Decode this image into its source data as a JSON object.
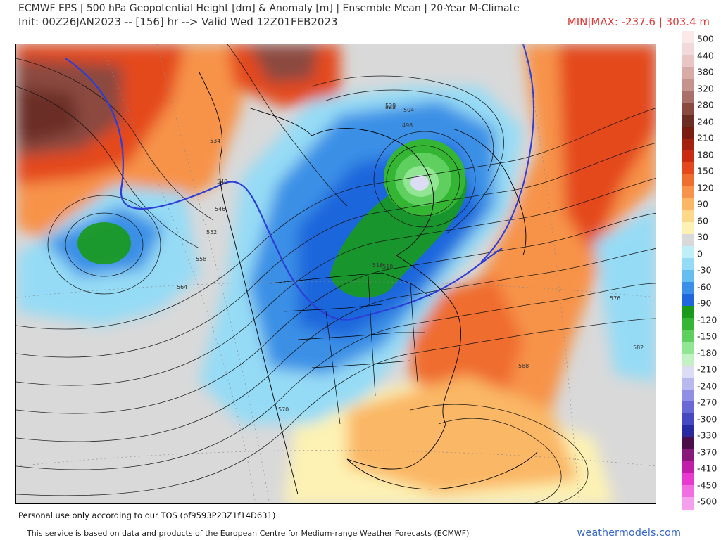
{
  "header": {
    "title": "ECMWF EPS | 500 hPa Geopotential Height [dm] & Anomaly [m] | Ensemble Mean | 20-Year M-Climate",
    "init": "Init: 00Z26JAN2023 -- [156] hr --> Valid Wed 12Z01FEB2023",
    "minmax": "MIN|MAX: -237.6 | 303.4 m"
  },
  "colorbar": {
    "labels": [
      "500",
      "440",
      "380",
      "320",
      "280",
      "240",
      "210",
      "180",
      "150",
      "120",
      "90",
      "60",
      "30",
      "0",
      "-30",
      "-60",
      "-90",
      "-120",
      "-150",
      "-180",
      "-210",
      "-240",
      "-270",
      "-300",
      "-330",
      "-370",
      "-410",
      "-450",
      "-500"
    ],
    "colors": [
      "#fbe9e9",
      "#f3dada",
      "#e8c6c3",
      "#d9aba6",
      "#c4938d",
      "#a87069",
      "#8b4a3f",
      "#6a2e25",
      "#7a1c10",
      "#a3210e",
      "#c82c13",
      "#e4481d",
      "#ef6d2e",
      "#f7934a",
      "#fab765",
      "#fcd98a",
      "#fdf2b4",
      "#d9d9d9",
      "#bfeff7",
      "#96dbf5",
      "#68bdef",
      "#3a90e6",
      "#1f66dc",
      "#1a9a1a",
      "#34b634",
      "#5fd05f",
      "#92e592",
      "#c3f1c3",
      "#dcdcf4",
      "#b9b9ee",
      "#8f8fe4",
      "#6a6ad6",
      "#4848c1",
      "#2a2aa0",
      "#4a0f4a",
      "#8a1a7a",
      "#c11fa8",
      "#e83ad0",
      "#f06fe0",
      "#f5a0ec"
    ]
  },
  "map": {
    "contour_labels": [
      "522",
      "528",
      "534",
      "540",
      "546",
      "552",
      "558",
      "564",
      "570",
      "576",
      "582",
      "588",
      "498",
      "504",
      "510",
      "516"
    ]
  },
  "footer": {
    "tos": "Personal use only according to our TOS (pf9593P23Z1f14D631)",
    "credit": "This service is based on data and products of the European Centre for Medium-range Weather Forecasts (ECMWF)",
    "site": "weathermodels.com"
  }
}
